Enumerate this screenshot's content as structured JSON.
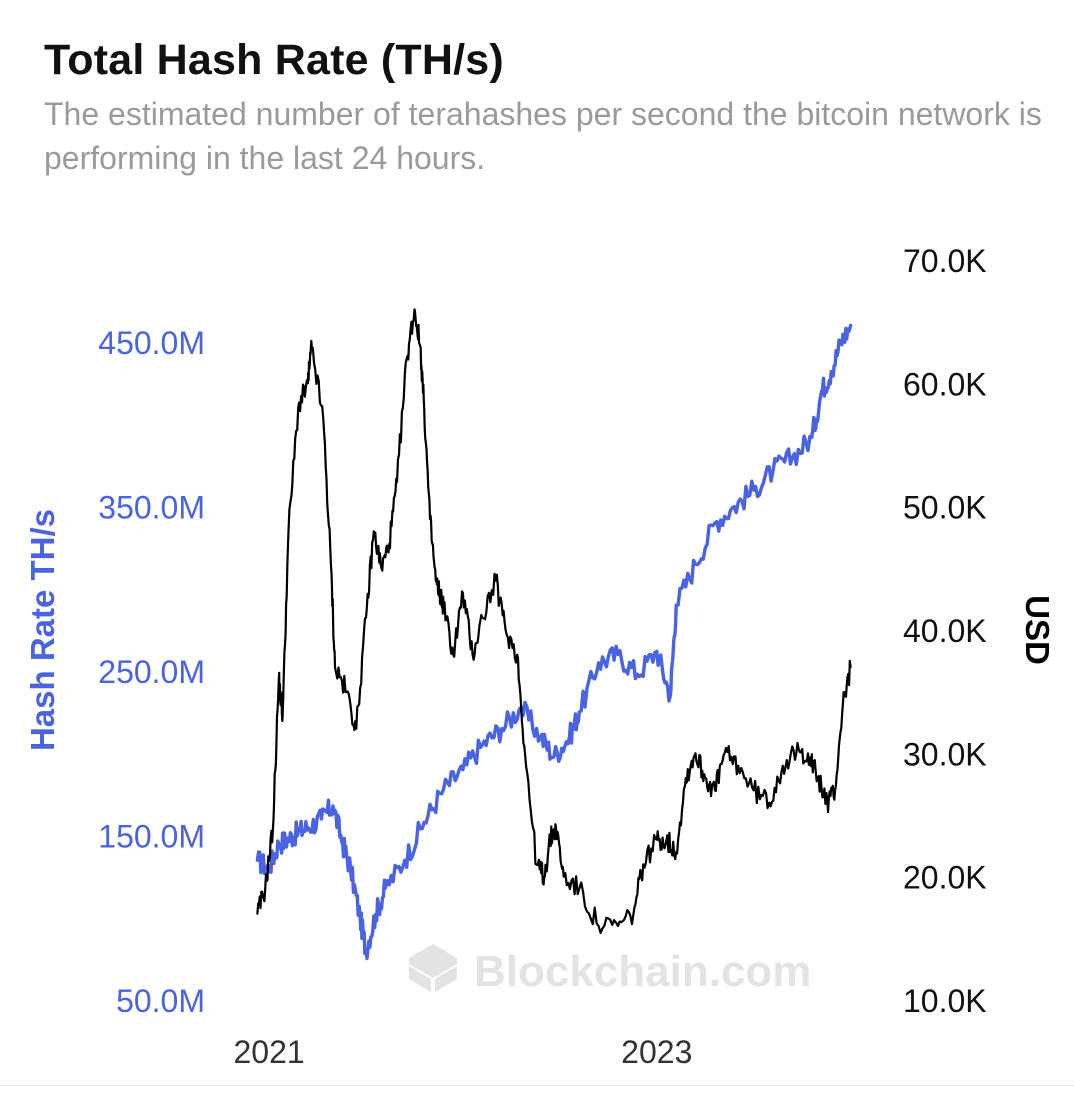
{
  "header": {
    "title": "Total Hash Rate (TH/s)",
    "subtitle": "The estimated number of terahashes per second the bitcoin network is performing in the last 24 hours."
  },
  "watermark": "Blockchain.com",
  "chart_data": {
    "type": "line",
    "title": "Total Hash Rate (TH/s)",
    "subtitle": "The estimated number of terahashes per second the bitcoin network is performing in the last 24 hours.",
    "xlabel": "",
    "x_ticks": [
      {
        "label": "2021",
        "value": 2021.0
      },
      {
        "label": "2023",
        "value": 2023.0
      }
    ],
    "x_range": [
      2020.85,
      2024.1
    ],
    "y_left": {
      "label": "Hash Rate TH/s",
      "range": [
        50,
        500
      ],
      "ticks": [
        {
          "label": "50.0M",
          "value": 50
        },
        {
          "label": "150.0M",
          "value": 150
        },
        {
          "label": "250.0M",
          "value": 250
        },
        {
          "label": "350.0M",
          "value": 350
        },
        {
          "label": "450.0M",
          "value": 450
        }
      ]
    },
    "y_right": {
      "label": "USD",
      "range": [
        10,
        70
      ],
      "ticks": [
        {
          "label": "10.0K",
          "value": 10
        },
        {
          "label": "20.0K",
          "value": 20
        },
        {
          "label": "30.0K",
          "value": 30
        },
        {
          "label": "40.0K",
          "value": 40
        },
        {
          "label": "50.0K",
          "value": 50
        },
        {
          "label": "60.0K",
          "value": 60
        },
        {
          "label": "70.0K",
          "value": 70
        }
      ]
    },
    "series": [
      {
        "name": "Hash Rate TH/s",
        "axis": "left",
        "color": "#4a63e0",
        "unit": "M TH/s",
        "x": [
          2020.94,
          2021.0,
          2021.05,
          2021.1,
          2021.15,
          2021.2,
          2021.27,
          2021.33,
          2021.38,
          2021.42,
          2021.47,
          2021.5,
          2021.55,
          2021.6,
          2021.7,
          2021.8,
          2021.9,
          2022.0,
          2022.1,
          2022.2,
          2022.3,
          2022.4,
          2022.47,
          2022.55,
          2022.6,
          2022.7,
          2022.8,
          2022.9,
          2023.0,
          2023.07,
          2023.1,
          2023.2,
          2023.3,
          2023.4,
          2023.5,
          2023.6,
          2023.7,
          2023.8,
          2023.85,
          2023.9,
          2023.95,
          2024.0
        ],
        "values": [
          135,
          130,
          145,
          148,
          152,
          155,
          160,
          168,
          145,
          130,
          100,
          80,
          102,
          118,
          135,
          158,
          178,
          190,
          205,
          215,
          228,
          210,
          198,
          210,
          225,
          255,
          260,
          248,
          262,
          235,
          290,
          315,
          340,
          350,
          360,
          372,
          380,
          392,
          420,
          432,
          450,
          460
        ]
      },
      {
        "name": "USD",
        "axis": "right",
        "color": "#000000",
        "unit": "K USD",
        "x": [
          2020.94,
          2020.98,
          2021.02,
          2021.05,
          2021.07,
          2021.1,
          2021.15,
          2021.2,
          2021.22,
          2021.28,
          2021.32,
          2021.34,
          2021.4,
          2021.45,
          2021.5,
          2021.54,
          2021.58,
          2021.62,
          2021.66,
          2021.71,
          2021.75,
          2021.78,
          2021.8,
          2021.83,
          2021.86,
          2021.88,
          2021.9,
          2021.95,
          2022.0,
          2022.05,
          2022.1,
          2022.17,
          2022.22,
          2022.28,
          2022.32,
          2022.38,
          2022.42,
          2022.45,
          2022.48,
          2022.52,
          2022.6,
          2022.7,
          2022.8,
          2022.88,
          2022.93,
          2023.0,
          2023.05,
          2023.1,
          2023.15,
          2023.2,
          2023.25,
          2023.3,
          2023.35,
          2023.42,
          2023.5,
          2023.58,
          2023.65,
          2023.72,
          2023.78,
          2023.83,
          2023.88,
          2023.92,
          2023.96,
          2024.0
        ],
        "values": [
          17,
          19,
          24,
          36,
          33,
          48,
          58,
          60,
          63,
          57,
          45,
          37,
          35,
          32,
          41,
          48,
          45,
          47,
          52,
          62,
          66,
          63,
          58,
          49,
          44,
          43,
          42,
          38,
          43,
          38,
          41,
          44,
          40,
          38,
          30,
          21,
          20,
          23,
          24,
          20,
          19,
          16,
          16,
          17,
          21,
          23,
          23,
          22,
          28,
          30,
          28,
          27,
          30,
          29,
          27,
          26,
          29,
          30,
          30,
          28,
          26,
          27,
          34,
          37
        ]
      }
    ]
  }
}
